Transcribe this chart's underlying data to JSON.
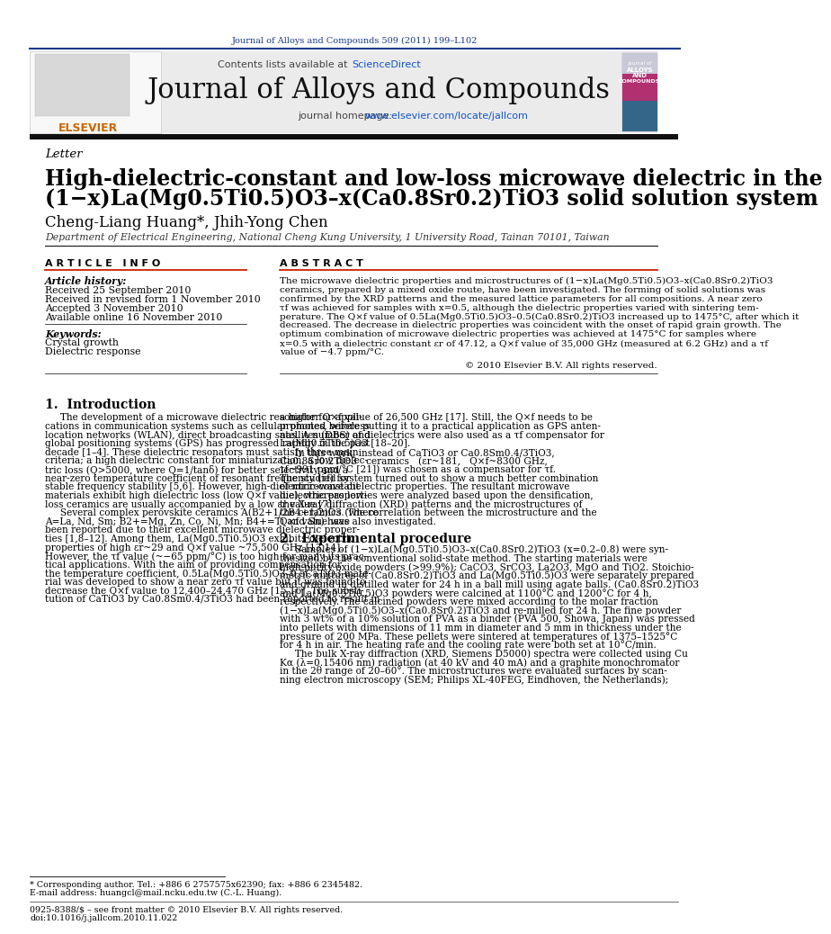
{
  "page_title": "Journal of Alloys and Compounds 509 (2011) 199–L102",
  "journal_name": "Journal of Alloys and Compounds",
  "journal_homepage_prefix": "journal homepage: ",
  "journal_homepage_link": "www.elsevier.com/locate/jallcom",
  "contents_prefix": "Contents lists available at ",
  "contents_link": "ScienceDirect",
  "section_label": "Letter",
  "article_title_line1": "High-dielectric-constant and low-loss microwave dielectric in the",
  "article_title_line2": "(1−x)La(Mg0.5Ti0.5)O3–x(Ca0.8Sr0.2)TiO3 solid solution system",
  "authors": "Cheng-Liang Huang*, Jhih-Yong Chen",
  "affiliation": "Department of Electrical Engineering, National Cheng Kung University, 1 University Road, Tainan 70101, Taiwan",
  "article_info_header": "A R T I C L E   I N F O",
  "abstract_header": "A B S T R A C T",
  "article_history_label": "Article history:",
  "received1": "Received 25 September 2010",
  "received2": "Received in revised form 1 November 2010",
  "accepted": "Accepted 3 November 2010",
  "available": "Available online 16 November 2010",
  "keywords_label": "Keywords:",
  "keyword1": "Crystal growth",
  "keyword2": "Dielectric response",
  "copyright": "© 2010 Elsevier B.V. All rights reserved.",
  "intro_header": "1.  Introduction",
  "section2_header": "2.  Experimental procedure",
  "footnote1": "* Corresponding author. Tel.: +886 6 2757575x62390; fax: +886 6 2345482.",
  "footnote2": "E-mail address: huangcl@mail.ncku.edu.tw (C.-L. Huang).",
  "footnote3": "0925-8388/$ – see front matter © 2010 Elsevier B.V. All rights reserved.",
  "footnote4": "doi:10.1016/j.jallcom.2010.11.022",
  "abstract_lines": [
    "The microwave dielectric properties and microstructures of (1−x)La(Mg0.5Ti0.5)O3–x(Ca0.8Sr0.2)TiO3",
    "ceramics, prepared by a mixed oxide route, have been investigated. The forming of solid solutions was",
    "confirmed by the XRD patterns and the measured lattice parameters for all compositions. A near zero",
    "τf was achieved for samples with x=0.5, although the dielectric properties varied with sintering tem-",
    "perature. The Q×f value of 0.5La(Mg0.5Ti0.5)O3–0.5(Ca0.8Sr0.2)TiO3 increased up to 1475°C, after which it",
    "decreased. The decrease in dielectric properties was coincident with the onset of rapid grain growth. The",
    "optimum combination of microwave dielectric properties was achieved at 1475°C for samples where",
    "x=0.5 with a dielectric constant εr of 47.12, a Q×f value of 35,000 GHz (measured at 6.2 GHz) and a τf",
    "value of −4.7 ppm/°C."
  ],
  "intro_left_lines": [
    "     The development of a microwave dielectric resonator for appli-",
    "cations in communication systems such as cellular phones, wireless",
    "location networks (WLAN), direct broadcasting satellites (DBS) and",
    "global positioning systems (GPS) has progressed rapidly in the past",
    "decade [1–4]. These dielectric resonators must satisfy three main",
    "criteria; a high dielectric constant for miniaturization, a low dielec-",
    "tric loss (Q>5000, where Q=1/tanδ) for better selectivity and a",
    "near-zero temperature coefficient of resonant frequency (τf) for",
    "stable frequency stability [5,6]. However, high-dielectric-constant",
    "materials exhibit high dielectric loss (low Q×f value), whereas low-",
    "loss ceramics are usually accompanied by a low εr value [7].",
    "     Several complex perovskite ceramics A(B2+1/2B4+1/2)O3 (where",
    "A=La, Nd, Sm; B2+=Mg, Zn, Co, Ni, Mn; B4+=Ti and Sn) have",
    "been reported due to their excellent microwave dielectric proper-",
    "ties [1,8–12]. Among them, La(Mg0.5Ti0.5)O3 exhibits dielectric",
    "properties of high εr~29 and Q×f value ~75,500 GHz [13,14].",
    "However, the τf value (~−65 ppm/°C) is too high for many its prac-",
    "tical applications. With the aim of providing compensation for",
    "the temperature coefficient, 0.5La(Mg0.5Ti0.5)O3–0.5CaTiO3 mate-",
    "rial was developed to show a near zero τf value but it was found to",
    "decrease the Q×f value to 12,400–24,470 GHz [15,16]. The substi-",
    "tution of CaTiO3 by Ca0.8Sm0.4/3TiO3 had been reported to result in"
  ],
  "intro_right_lines": [
    "a higher Q×f value of 26,500 GHz [17]. Still, the Q×f needs to be",
    "promoted before putting it to a practical application as GPS anten-",
    "nas. A number of dielectrics were also used as a τf compensator for",
    "La(Mg0.5Ti0.5)O3 [18–20].",
    "     In this work, instead of CaTiO3 or Ca0.8Sm0.4/3TiO3,",
    "Ca0.8Sr0.2TiO3   ceramics   (εr~181,   Q×f~8300 GHz,",
    "τf~991 ppm/°C [21]) was chosen as a compensator for τf.",
    "The studied system turned out to show a much better combination",
    "of microwave dielectric properties. The resultant microwave",
    "dielectric properties were analyzed based upon the densification,",
    "the X-ray diffraction (XRD) patterns and the microstructures of",
    "the ceramics. The correlation between the microstructure and the",
    "Q×f value was also investigated."
  ],
  "sec2_lines": [
    "     Samples of (1−x)La(Mg0.5Ti0.5)O3–x(Ca0.8Sr0.2)TiO3 (x=0.2–0.8) were syn-",
    "thesized by the conventional solid-state method. The starting materials were",
    "high-purity oxide powders (>99.9%); CaCO3, SrCO3, La2O3, MgO and TiO2. Stoichio-",
    "metric mixtures of (Ca0.8Sr0.2)TiO3 and La(Mg0.5Ti0.5)O3 were separately prepared",
    "and ground in distilled water for 24 h in a ball mill using agate balls. (Ca0.8Sr0.2)TiO3",
    "and La(Mg0.5Ti0.5)O3 powders were calcined at 1100°C and 1200°C for 4 h,",
    "respectively. The calcined powders were mixed according to the molar fraction",
    "(1−x)La(Mg0.5Ti0.5)O3–x(Ca0.8Sr0.2)TiO3 and re-milled for 24 h. The fine powder",
    "with 3 wt% of a 10% solution of PVA as a binder (PVA 500, Showa, Japan) was pressed",
    "into pellets with dimensions of 11 mm in diameter and 5 mm in thickness under the",
    "pressure of 200 MPa. These pellets were sintered at temperatures of 1375–1525°C",
    "for 4 h in air. The heating rate and the cooling rate were both set at 10°C/min.",
    "     The bulk X-ray diffraction (XRD, Siemens D5000) spectra were collected using Cu",
    "Kα (λ=0.15406 nm) radiation (at 40 kV and 40 mA) and a graphite monochromator",
    "in the 2θ range of 20–60°. The microstructures were evaluated surfaces by scan-",
    "ning electron microscopy (SEM; Philips XL-40FEG, Eindhoven, the Netherlands);"
  ],
  "bg_color": "#ffffff",
  "dark_bar_color": "#111111",
  "blue_color": "#1a3a8a",
  "link_color": "#1155cc",
  "orange_color": "#cc6600",
  "red_line_color": "#cc2200"
}
